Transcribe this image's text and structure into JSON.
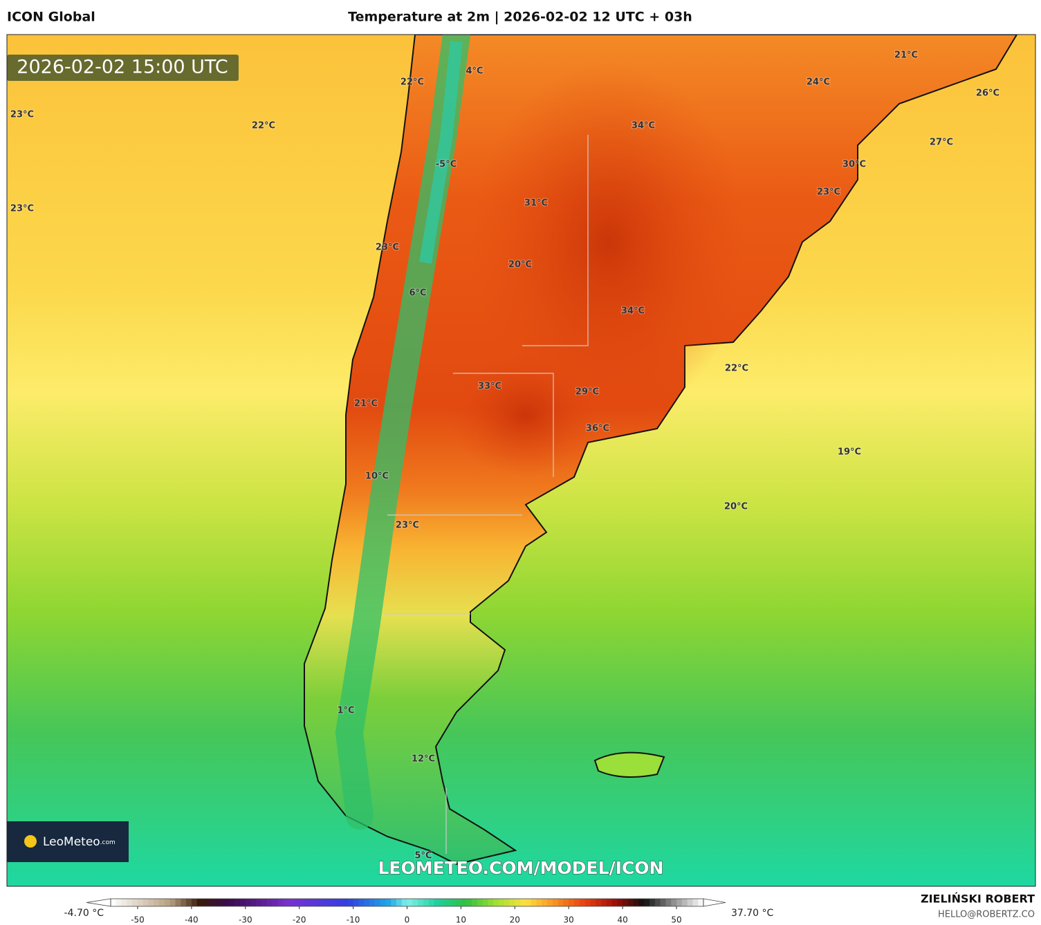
{
  "header": {
    "source": "ICON Global",
    "title": "Temperature at 2m | 2026-02-02 12 UTC + 03h"
  },
  "map": {
    "timestamp": "2026-02-02 15:00 UTC",
    "labels": [
      "23°C",
      "22°C",
      "22°C",
      "4°C",
      "21°C",
      "24°C",
      "26°C",
      "34°C",
      "27°C",
      "-5°C",
      "30°C",
      "23°C",
      "23°C",
      "31°C",
      "23°C",
      "20°C",
      "6°C",
      "34°C",
      "22°C",
      "33°C",
      "29°C",
      "21°C",
      "36°C",
      "19°C",
      "10°C",
      "20°C",
      "23°C",
      "1°C",
      "12°C",
      "5°C"
    ],
    "watermark": "LEOMETEO.COM/MODEL/ICON"
  },
  "logo": {
    "name": "LeoMeteo",
    "suffix": ".com"
  },
  "colorbar": {
    "min_label": "-4.70 °C",
    "max_label": "37.70 °C",
    "ticks": [
      -50,
      -40,
      -30,
      -20,
      -10,
      0,
      10,
      20,
      30,
      40,
      50
    ]
  },
  "footer": {
    "author": "ZIELIŃSKI ROBERT",
    "contact": "HELLO@ROBERTZ.CO"
  }
}
